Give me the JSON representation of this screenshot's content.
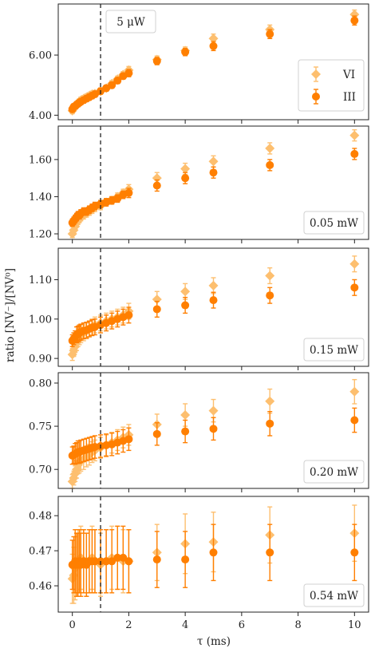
{
  "figure": {
    "ylabel": "ratio [NV⁻]/[NV⁰]",
    "xlabel": "τ (ms)"
  },
  "colors": {
    "vi": "#fdbf6f",
    "iii": "#ff7f00",
    "vline": "#222222"
  },
  "chart_data": [
    {
      "type": "scatter",
      "annotation": "5 μW",
      "ylim": [
        3.85,
        7.7
      ],
      "yticks": [
        4.0,
        6.0
      ],
      "ytick_labels": [
        "4.00",
        "6.00"
      ],
      "xlim": [
        -0.5,
        10.5
      ],
      "xticks": [
        0,
        2,
        4,
        6,
        8,
        10
      ],
      "vline_x": 1,
      "legend": "center-right",
      "series": [
        {
          "name": "VI",
          "marker": "diamond",
          "x": [
            0,
            0.05,
            0.1,
            0.15,
            0.2,
            0.25,
            0.3,
            0.4,
            0.5,
            0.6,
            0.7,
            0.8,
            1.0,
            1.2,
            1.4,
            1.6,
            1.8,
            2,
            3,
            4,
            5,
            7,
            10
          ],
          "y": [
            4.15,
            4.25,
            4.3,
            4.35,
            4.4,
            4.45,
            4.5,
            4.55,
            4.6,
            4.65,
            4.7,
            4.72,
            4.8,
            4.9,
            5.05,
            5.2,
            5.35,
            5.5,
            5.85,
            6.15,
            6.55,
            6.85,
            7.35
          ],
          "yerr": [
            0.1,
            0.1,
            0.1,
            0.1,
            0.1,
            0.1,
            0.1,
            0.1,
            0.1,
            0.1,
            0.1,
            0.1,
            0.1,
            0.1,
            0.1,
            0.1,
            0.1,
            0.12,
            0.12,
            0.12,
            0.15,
            0.15,
            0.15
          ]
        },
        {
          "name": "III",
          "marker": "circle",
          "x": [
            0,
            0.05,
            0.1,
            0.15,
            0.2,
            0.25,
            0.3,
            0.4,
            0.5,
            0.6,
            0.7,
            0.8,
            1.0,
            1.2,
            1.4,
            1.6,
            1.8,
            2,
            3,
            4,
            5,
            7,
            10
          ],
          "y": [
            4.2,
            4.28,
            4.3,
            4.35,
            4.38,
            4.42,
            4.45,
            4.5,
            4.55,
            4.6,
            4.65,
            4.7,
            4.8,
            4.9,
            5.0,
            5.15,
            5.3,
            5.4,
            5.8,
            6.1,
            6.3,
            6.7,
            7.15
          ],
          "yerr": [
            0.1,
            0.1,
            0.1,
            0.1,
            0.1,
            0.1,
            0.1,
            0.1,
            0.1,
            0.1,
            0.1,
            0.1,
            0.1,
            0.1,
            0.1,
            0.1,
            0.1,
            0.12,
            0.12,
            0.12,
            0.15,
            0.15,
            0.15
          ]
        }
      ]
    },
    {
      "type": "scatter",
      "annotation": "0.05 mW",
      "ylim": [
        1.17,
        1.78
      ],
      "yticks": [
        1.2,
        1.4,
        1.6
      ],
      "ytick_labels": [
        "1.20",
        "1.40",
        "1.60"
      ],
      "xlim": [
        -0.5,
        10.5
      ],
      "xticks": [
        0,
        2,
        4,
        6,
        8,
        10
      ],
      "vline_x": 1,
      "series": [
        {
          "name": "VI",
          "marker": "diamond",
          "x": [
            0,
            0.05,
            0.1,
            0.15,
            0.2,
            0.25,
            0.3,
            0.4,
            0.5,
            0.6,
            0.7,
            0.8,
            1.0,
            1.2,
            1.4,
            1.6,
            1.8,
            2,
            3,
            4,
            5,
            7,
            10
          ],
          "y": [
            1.2,
            1.22,
            1.24,
            1.26,
            1.27,
            1.28,
            1.29,
            1.3,
            1.31,
            1.32,
            1.33,
            1.34,
            1.35,
            1.37,
            1.38,
            1.4,
            1.42,
            1.44,
            1.5,
            1.55,
            1.59,
            1.66,
            1.73
          ],
          "yerr": [
            0.02,
            0.02,
            0.02,
            0.02,
            0.02,
            0.02,
            0.02,
            0.02,
            0.02,
            0.02,
            0.02,
            0.02,
            0.02,
            0.02,
            0.02,
            0.02,
            0.02,
            0.025,
            0.03,
            0.03,
            0.03,
            0.03,
            0.03
          ]
        },
        {
          "name": "III",
          "marker": "circle",
          "x": [
            0,
            0.05,
            0.1,
            0.15,
            0.2,
            0.25,
            0.3,
            0.4,
            0.5,
            0.6,
            0.7,
            0.8,
            1.0,
            1.2,
            1.4,
            1.6,
            1.8,
            2,
            3,
            4,
            5,
            7,
            10
          ],
          "y": [
            1.26,
            1.27,
            1.28,
            1.29,
            1.3,
            1.3,
            1.31,
            1.32,
            1.32,
            1.33,
            1.34,
            1.35,
            1.36,
            1.37,
            1.38,
            1.39,
            1.41,
            1.42,
            1.46,
            1.5,
            1.53,
            1.57,
            1.63
          ],
          "yerr": [
            0.02,
            0.02,
            0.02,
            0.02,
            0.02,
            0.02,
            0.02,
            0.02,
            0.02,
            0.02,
            0.02,
            0.02,
            0.02,
            0.02,
            0.02,
            0.02,
            0.02,
            0.025,
            0.03,
            0.03,
            0.03,
            0.03,
            0.03
          ]
        }
      ]
    },
    {
      "type": "scatter",
      "annotation": "0.15 mW",
      "ylim": [
        0.88,
        1.18
      ],
      "yticks": [
        0.9,
        1.0,
        1.1
      ],
      "ytick_labels": [
        "0.90",
        "1.00",
        "1.10"
      ],
      "xlim": [
        -0.5,
        10.5
      ],
      "xticks": [
        0,
        2,
        4,
        6,
        8,
        10
      ],
      "vline_x": 1,
      "series": [
        {
          "name": "VI",
          "marker": "diamond",
          "x": [
            0,
            0.05,
            0.1,
            0.15,
            0.2,
            0.25,
            0.3,
            0.4,
            0.5,
            0.6,
            0.7,
            0.8,
            1.0,
            1.2,
            1.4,
            1.6,
            1.8,
            2,
            3,
            4,
            5,
            7,
            10
          ],
          "y": [
            0.91,
            0.92,
            0.93,
            0.94,
            0.95,
            0.955,
            0.96,
            0.965,
            0.97,
            0.975,
            0.98,
            0.985,
            0.99,
            0.995,
            1.0,
            1.005,
            1.01,
            1.02,
            1.05,
            1.07,
            1.085,
            1.11,
            1.14
          ],
          "yerr": [
            0.015,
            0.015,
            0.015,
            0.02,
            0.02,
            0.02,
            0.02,
            0.02,
            0.02,
            0.02,
            0.02,
            0.02,
            0.02,
            0.02,
            0.02,
            0.02,
            0.02,
            0.02,
            0.02,
            0.02,
            0.02,
            0.02,
            0.02
          ]
        },
        {
          "name": "III",
          "marker": "circle",
          "x": [
            0,
            0.05,
            0.1,
            0.15,
            0.2,
            0.25,
            0.3,
            0.4,
            0.5,
            0.6,
            0.7,
            0.8,
            1.0,
            1.2,
            1.4,
            1.6,
            1.8,
            2,
            3,
            4,
            5,
            7,
            10
          ],
          "y": [
            0.945,
            0.95,
            0.955,
            0.96,
            0.962,
            0.965,
            0.967,
            0.97,
            0.972,
            0.975,
            0.978,
            0.98,
            0.985,
            0.99,
            0.995,
            1.0,
            1.005,
            1.01,
            1.025,
            1.035,
            1.048,
            1.06,
            1.08
          ],
          "yerr": [
            0.015,
            0.015,
            0.015,
            0.02,
            0.02,
            0.02,
            0.02,
            0.02,
            0.02,
            0.02,
            0.02,
            0.02,
            0.02,
            0.02,
            0.02,
            0.02,
            0.02,
            0.02,
            0.02,
            0.02,
            0.02,
            0.02,
            0.02
          ]
        }
      ]
    },
    {
      "type": "scatter",
      "annotation": "0.20 mW",
      "ylim": [
        0.678,
        0.812
      ],
      "yticks": [
        0.7,
        0.75,
        0.8
      ],
      "ytick_labels": [
        "0.70",
        "0.75",
        "0.80"
      ],
      "xlim": [
        -0.5,
        10.5
      ],
      "xticks": [
        0,
        2,
        4,
        6,
        8,
        10
      ],
      "vline_x": 1,
      "series": [
        {
          "name": "VI",
          "marker": "diamond",
          "x": [
            0,
            0.05,
            0.1,
            0.15,
            0.2,
            0.25,
            0.3,
            0.4,
            0.5,
            0.6,
            0.7,
            0.8,
            1.0,
            1.2,
            1.4,
            1.6,
            1.8,
            2,
            3,
            4,
            5,
            7,
            10
          ],
          "y": [
            0.686,
            0.69,
            0.695,
            0.7,
            0.705,
            0.708,
            0.71,
            0.712,
            0.715,
            0.717,
            0.72,
            0.722,
            0.725,
            0.728,
            0.731,
            0.734,
            0.737,
            0.74,
            0.752,
            0.763,
            0.768,
            0.779,
            0.79
          ],
          "yerr": [
            0.008,
            0.008,
            0.009,
            0.01,
            0.01,
            0.012,
            0.012,
            0.012,
            0.012,
            0.012,
            0.012,
            0.012,
            0.012,
            0.012,
            0.012,
            0.012,
            0.012,
            0.012,
            0.012,
            0.013,
            0.013,
            0.014,
            0.014
          ]
        },
        {
          "name": "III",
          "marker": "circle",
          "x": [
            0,
            0.05,
            0.1,
            0.15,
            0.2,
            0.25,
            0.3,
            0.4,
            0.5,
            0.6,
            0.7,
            0.8,
            1.0,
            1.2,
            1.4,
            1.6,
            1.8,
            2,
            3,
            4,
            5,
            7,
            10
          ],
          "y": [
            0.716,
            0.717,
            0.718,
            0.719,
            0.72,
            0.72,
            0.721,
            0.722,
            0.723,
            0.724,
            0.725,
            0.726,
            0.727,
            0.728,
            0.729,
            0.731,
            0.733,
            0.735,
            0.741,
            0.744,
            0.747,
            0.753,
            0.757
          ],
          "yerr": [
            0.01,
            0.01,
            0.012,
            0.012,
            0.013,
            0.013,
            0.013,
            0.013,
            0.013,
            0.013,
            0.013,
            0.013,
            0.013,
            0.013,
            0.013,
            0.013,
            0.013,
            0.013,
            0.013,
            0.013,
            0.013,
            0.014,
            0.014
          ]
        }
      ]
    },
    {
      "type": "scatter",
      "annotation": "0.54 mW",
      "ylim": [
        0.4525,
        0.4855
      ],
      "yticks": [
        0.46,
        0.47,
        0.48
      ],
      "ytick_labels": [
        "0.46",
        "0.47",
        "0.48"
      ],
      "xlim": [
        -0.5,
        10.5
      ],
      "xticks": [
        0,
        2,
        4,
        6,
        8,
        10
      ],
      "xtick_labels": [
        "0",
        "2",
        "4",
        "6",
        "8",
        "10"
      ],
      "vline_x": 1,
      "series": [
        {
          "name": "VI",
          "marker": "diamond",
          "x": [
            0,
            0.05,
            0.1,
            0.15,
            0.2,
            0.25,
            0.3,
            0.4,
            0.5,
            0.6,
            0.7,
            0.8,
            1.0,
            1.2,
            1.4,
            1.6,
            1.8,
            2,
            3,
            4,
            5,
            7,
            10
          ],
          "y": [
            0.462,
            0.463,
            0.465,
            0.466,
            0.467,
            0.467,
            0.468,
            0.467,
            0.466,
            0.467,
            0.468,
            0.467,
            0.466,
            0.467,
            0.468,
            0.468,
            0.467,
            0.467,
            0.4695,
            0.472,
            0.4725,
            0.4745,
            0.475
          ],
          "yerr": [
            0.007,
            0.008,
            0.009,
            0.009,
            0.009,
            0.009,
            0.009,
            0.009,
            0.009,
            0.009,
            0.009,
            0.009,
            0.009,
            0.009,
            0.009,
            0.009,
            0.009,
            0.009,
            0.008,
            0.0085,
            0.0085,
            0.008,
            0.008
          ]
        },
        {
          "name": "III",
          "marker": "circle",
          "x": [
            0,
            0.05,
            0.1,
            0.15,
            0.2,
            0.25,
            0.3,
            0.4,
            0.5,
            0.6,
            0.7,
            0.8,
            1.0,
            1.2,
            1.4,
            1.6,
            1.8,
            2,
            3,
            4,
            5,
            7,
            10
          ],
          "y": [
            0.466,
            0.466,
            0.467,
            0.466,
            0.466,
            0.467,
            0.466,
            0.467,
            0.466,
            0.467,
            0.467,
            0.467,
            0.467,
            0.467,
            0.467,
            0.468,
            0.468,
            0.467,
            0.4675,
            0.4675,
            0.4695,
            0.4695,
            0.4695
          ],
          "yerr": [
            0.007,
            0.008,
            0.009,
            0.009,
            0.009,
            0.009,
            0.009,
            0.009,
            0.009,
            0.009,
            0.009,
            0.009,
            0.009,
            0.009,
            0.009,
            0.009,
            0.009,
            0.009,
            0.008,
            0.008,
            0.008,
            0.008,
            0.008
          ]
        }
      ]
    }
  ]
}
